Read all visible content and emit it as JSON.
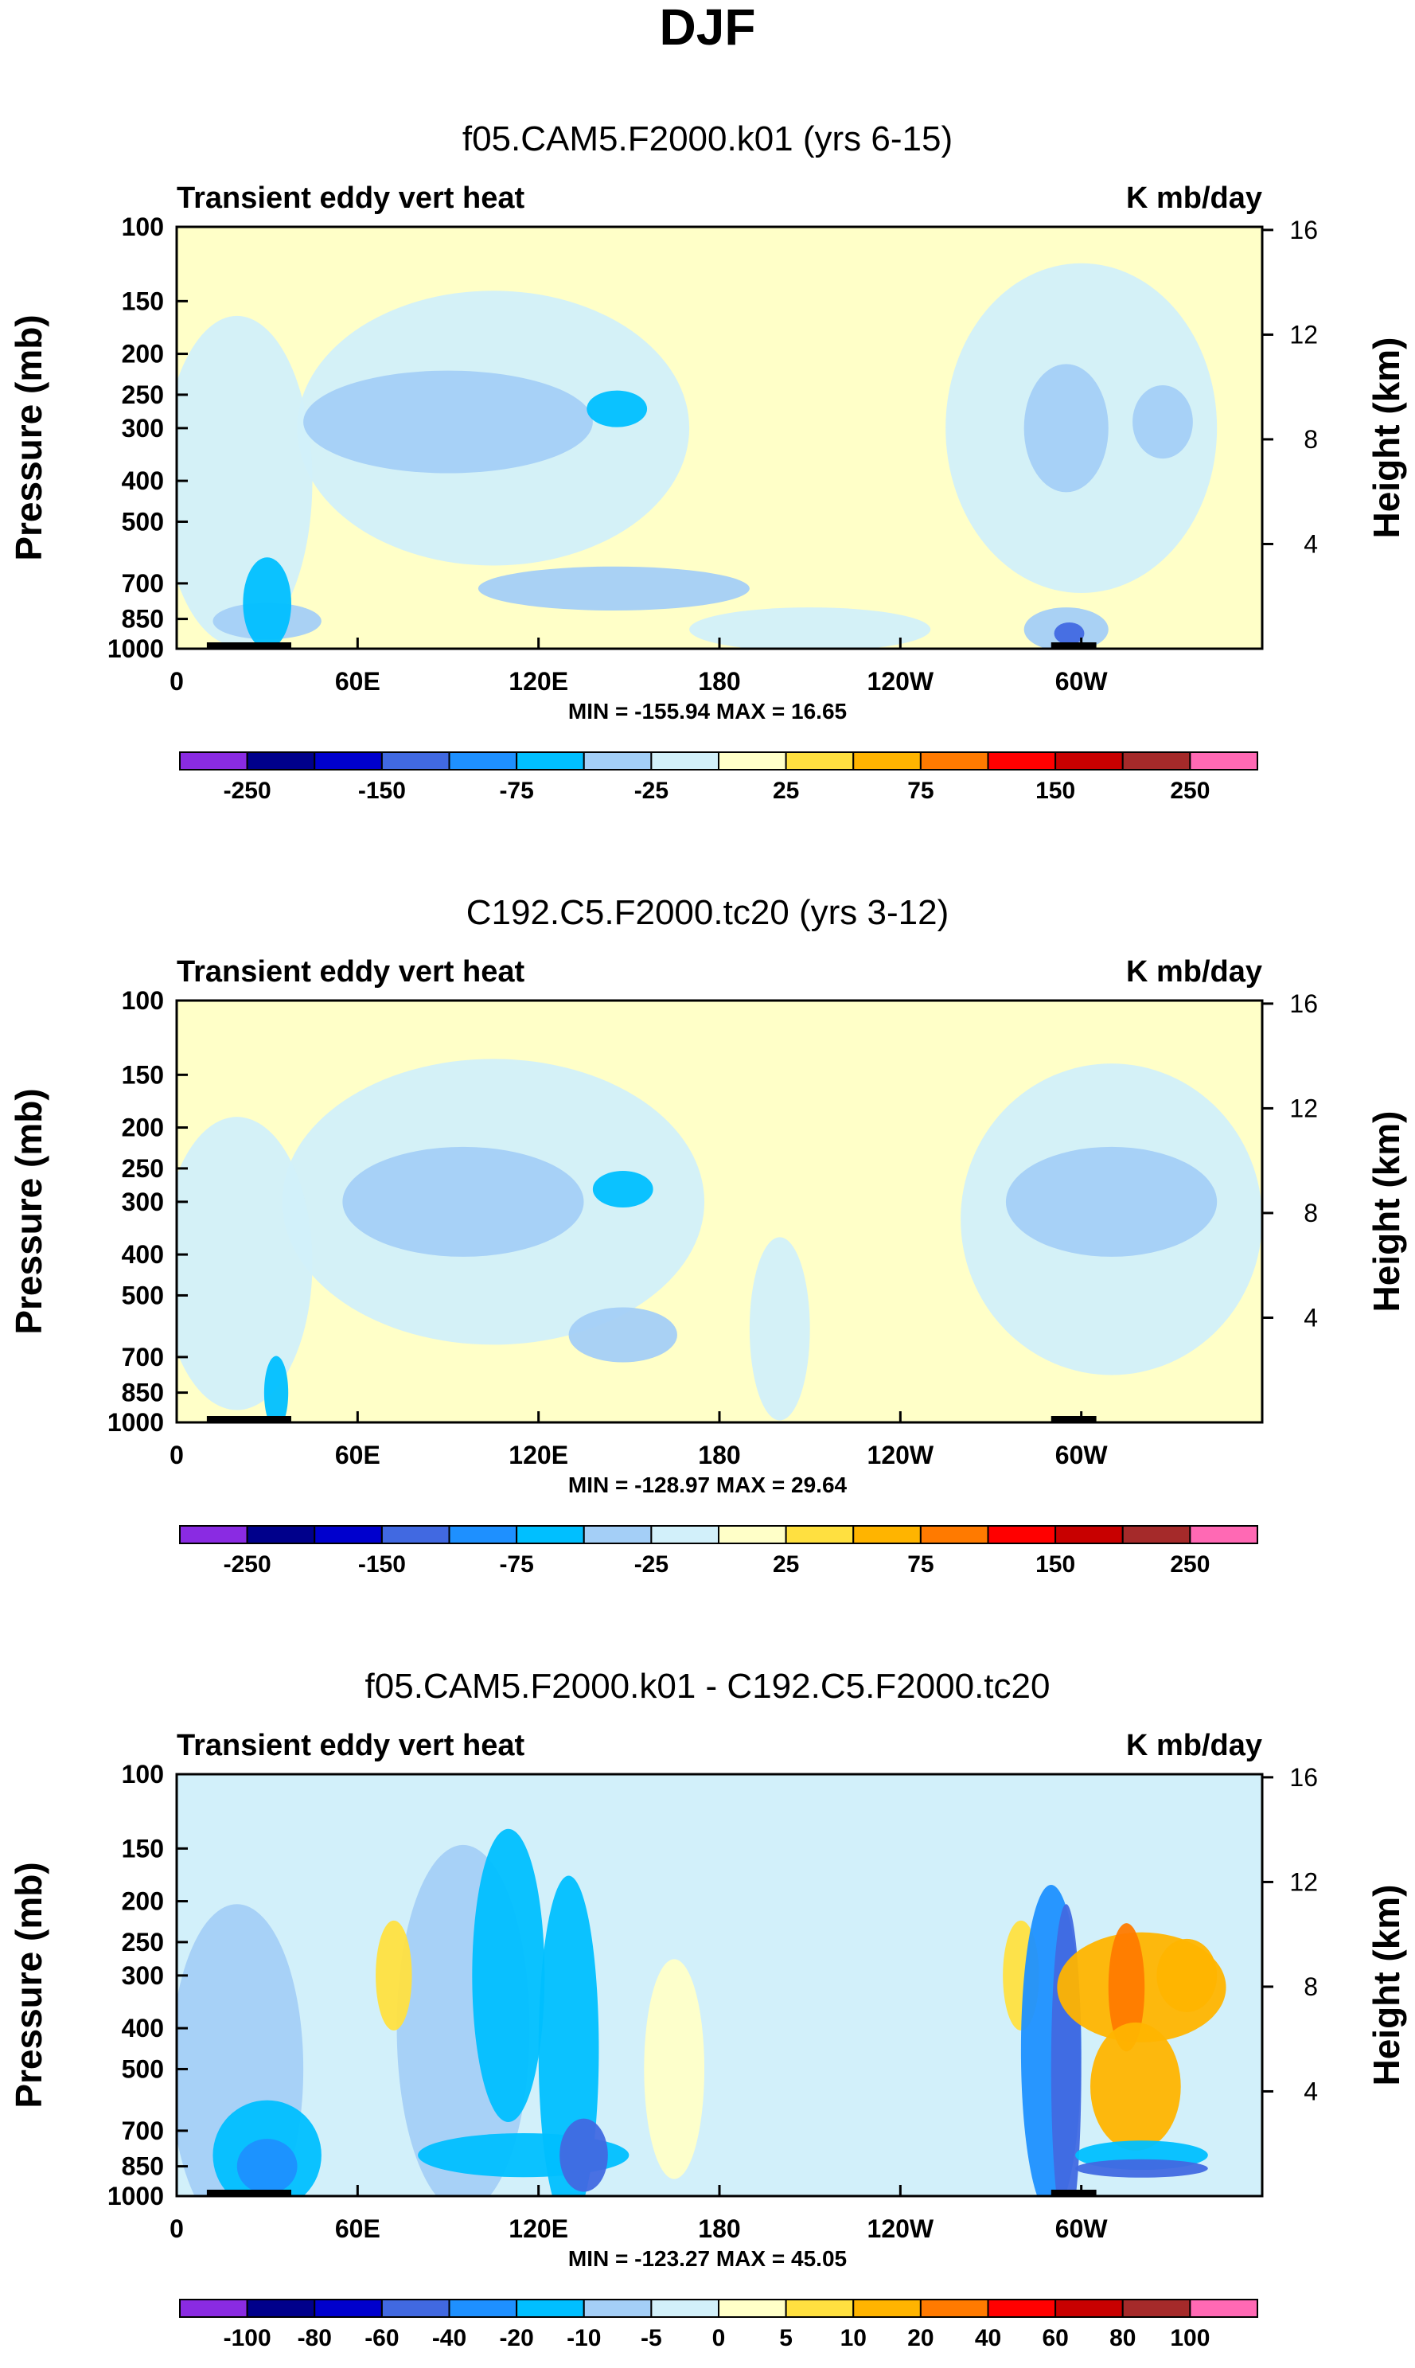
{
  "title": "DJF",
  "chart_data": [
    {
      "type": "heatmap",
      "subtitle": "f05.CAM5.F2000.k01 (yrs 6-15)",
      "left_label": "Transient eddy vert heat",
      "right_label": "K mb/day",
      "ylabel": "Pressure (mb)",
      "ylabel_right": "Height (km)",
      "y_ticks": [
        "100",
        "150",
        "200",
        "250",
        "300",
        "400",
        "500",
        "700",
        "850",
        "1000"
      ],
      "height_ticks": [
        "16",
        "12",
        "8",
        "4"
      ],
      "x_ticks": [
        "0",
        "60E",
        "120E",
        "180",
        "120W",
        "60W"
      ],
      "xlim": [
        0,
        360
      ],
      "ylim_mb": [
        1000,
        100
      ],
      "min_max": "MIN = -155.94  MAX =  16.65",
      "colorbar": {
        "labels": [
          "-250",
          "-150",
          "-75",
          "-25",
          "25",
          "75",
          "150",
          "250"
        ],
        "colors": [
          "#8a2be2",
          "#00008b",
          "#0000cd",
          "#4169e1",
          "#1e90ff",
          "#00bfff",
          "#a4cff7",
          "#d2f0fa",
          "#ffffc8",
          "#ffe040",
          "#ffb400",
          "#ff7a00",
          "#ff0000",
          "#c80000",
          "#a52a2a",
          "#ff69b4"
        ]
      },
      "background_value_color": "#ffffc8"
    },
    {
      "type": "heatmap",
      "subtitle": "C192.C5.F2000.tc20 (yrs 3-12)",
      "left_label": "Transient eddy vert heat",
      "right_label": "K mb/day",
      "ylabel": "Pressure (mb)",
      "ylabel_right": "Height (km)",
      "y_ticks": [
        "100",
        "150",
        "200",
        "250",
        "300",
        "400",
        "500",
        "700",
        "850",
        "1000"
      ],
      "height_ticks": [
        "16",
        "12",
        "8",
        "4"
      ],
      "x_ticks": [
        "0",
        "60E",
        "120E",
        "180",
        "120W",
        "60W"
      ],
      "xlim": [
        0,
        360
      ],
      "ylim_mb": [
        1000,
        100
      ],
      "min_max": "MIN = -128.97  MAX =  29.64",
      "colorbar": {
        "labels": [
          "-250",
          "-150",
          "-75",
          "-25",
          "25",
          "75",
          "150",
          "250"
        ],
        "colors": [
          "#8a2be2",
          "#00008b",
          "#0000cd",
          "#4169e1",
          "#1e90ff",
          "#00bfff",
          "#a4cff7",
          "#d2f0fa",
          "#ffffc8",
          "#ffe040",
          "#ffb400",
          "#ff7a00",
          "#ff0000",
          "#c80000",
          "#a52a2a",
          "#ff69b4"
        ]
      },
      "background_value_color": "#ffffc8"
    },
    {
      "type": "heatmap",
      "subtitle": "f05.CAM5.F2000.k01 - C192.C5.F2000.tc20",
      "left_label": "Transient eddy vert heat",
      "right_label": "K mb/day",
      "ylabel": "Pressure (mb)",
      "ylabel_right": "Height (km)",
      "y_ticks": [
        "100",
        "150",
        "200",
        "250",
        "300",
        "400",
        "500",
        "700",
        "850",
        "1000"
      ],
      "height_ticks": [
        "16",
        "12",
        "8",
        "4"
      ],
      "x_ticks": [
        "0",
        "60E",
        "120E",
        "180",
        "120W",
        "60W"
      ],
      "xlim": [
        0,
        360
      ],
      "ylim_mb": [
        1000,
        100
      ],
      "min_max": "MIN = -123.27  MAX =  45.05",
      "colorbar": {
        "labels": [
          "-100",
          "-80",
          "-60",
          "-40",
          "-20",
          "-10",
          "-5",
          "0",
          "5",
          "10",
          "20",
          "40",
          "60",
          "80",
          "100"
        ],
        "colors": [
          "#8a2be2",
          "#00008b",
          "#0000cd",
          "#4169e1",
          "#1e90ff",
          "#00bfff",
          "#a4cff7",
          "#d2f0fa",
          "#ffffc8",
          "#ffe040",
          "#ffb400",
          "#ff7a00",
          "#ff0000",
          "#c80000",
          "#a52a2a",
          "#ff69b4"
        ]
      },
      "background_value_color": "#d2f0fa"
    }
  ]
}
